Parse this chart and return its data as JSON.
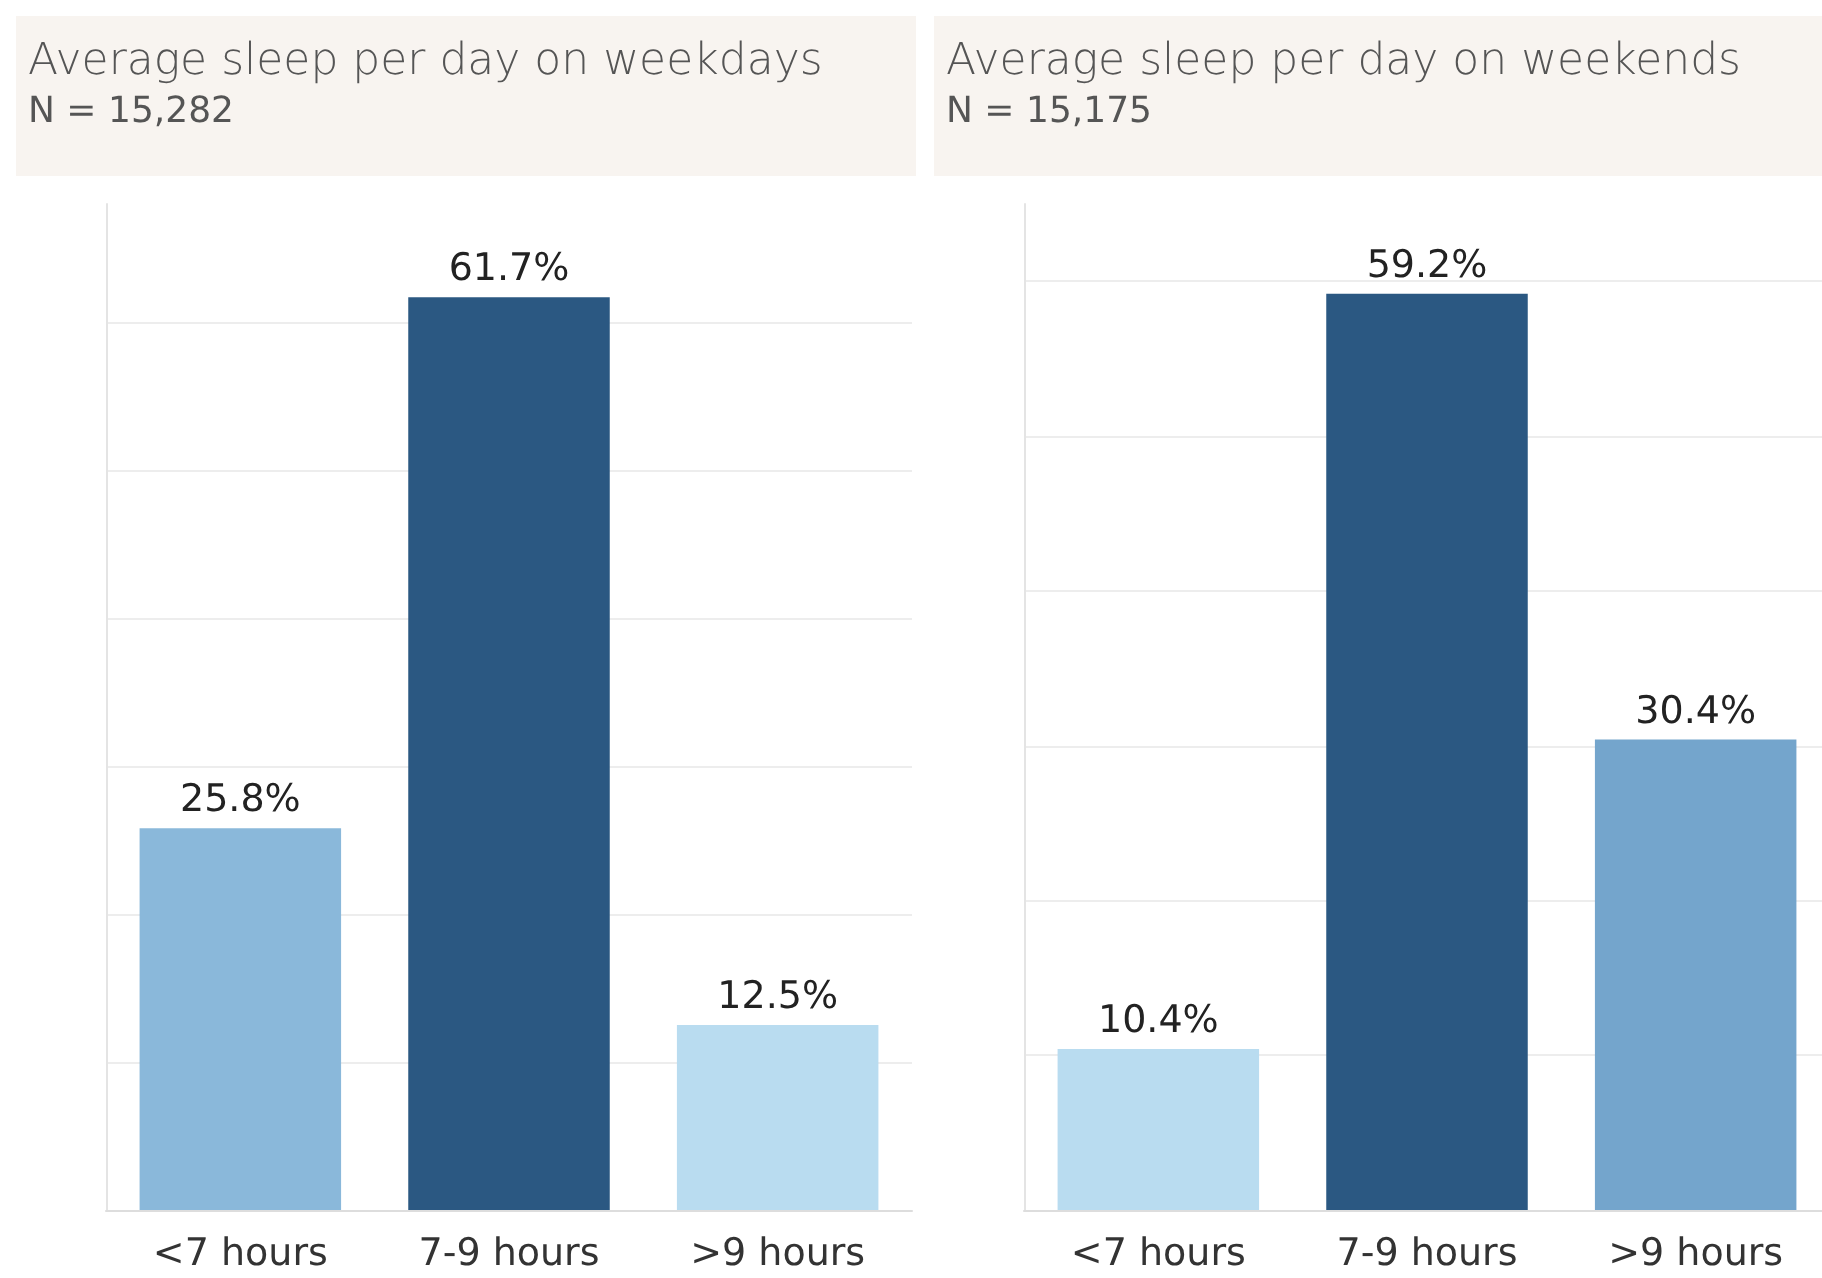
{
  "chart_data": [
    {
      "type": "bar",
      "title": "Average sleep per day on weekdays",
      "subtitle": "N = 15,282",
      "categories": [
        "<7 hours",
        "7-9 hours",
        ">9 hours"
      ],
      "values": [
        25.8,
        61.7,
        12.5
      ],
      "value_labels": [
        "25.8%",
        "61.7%",
        "12.5%"
      ],
      "colors": [
        "#8ab8da",
        "#2b5882",
        "#b9dcf0"
      ],
      "ylim": [
        0,
        68
      ],
      "yticks": [
        {
          "value": 0,
          "label": null
        },
        {
          "value": 10,
          "label": null
        },
        {
          "value": 20,
          "label": null
        },
        {
          "value": 30,
          "label": null
        },
        {
          "value": 40,
          "label": null
        },
        {
          "value": 50,
          "label": null
        },
        {
          "value": 60,
          "label": null
        }
      ],
      "grid": "y",
      "tick_labels": "x"
    },
    {
      "type": "bar",
      "title": "Average sleep per day on weekends",
      "subtitle": "N = 15,175",
      "categories": [
        "<7 hours",
        "7-9 hours",
        ">9 hours"
      ],
      "values": [
        10.4,
        59.2,
        30.4
      ],
      "value_labels": [
        "10.4%",
        "59.2%",
        "30.4%"
      ],
      "colors": [
        "#b9dcf0",
        "#2b5882",
        "#74a5cc"
      ],
      "ylim": [
        0,
        65
      ],
      "yticks": [
        {
          "value": 0,
          "label": null
        },
        {
          "value": 10,
          "label": null
        },
        {
          "value": 20,
          "label": null
        },
        {
          "value": 30,
          "label": null
        },
        {
          "value": 40,
          "label": null
        },
        {
          "value": 50,
          "label": null
        },
        {
          "value": 60,
          "label": null
        }
      ],
      "grid": "y",
      "tick_labels": "x"
    }
  ]
}
